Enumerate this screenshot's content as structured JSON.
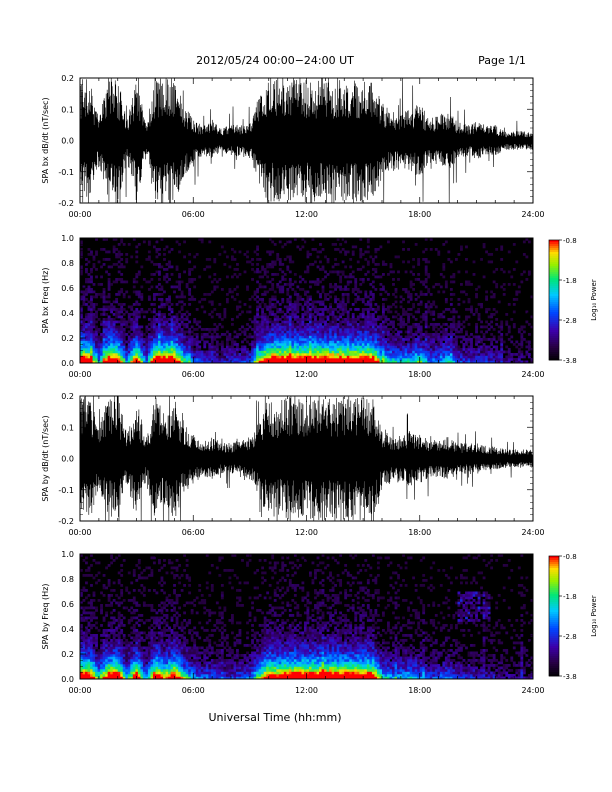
{
  "header": {
    "title": "2012/05/24  00:00−24:00 UT",
    "page": "Page 1/1"
  },
  "footer": {
    "xlabel": "Universal Time (hh:mm)"
  },
  "colors": {
    "trace": "#000000",
    "background": "#ffffff"
  },
  "chart_data": [
    {
      "type": "line",
      "ylabel": "SPA bx dB/dt (nT/sec)",
      "xlim": [
        0,
        24
      ],
      "ylim": [
        -0.2,
        0.2
      ],
      "x_ticks": [
        "00:00",
        "06:00",
        "12:00",
        "18:00",
        "24:00"
      ],
      "y_ticks": [
        "0.2",
        "0.1",
        "0.0",
        "-0.1",
        "-0.2"
      ],
      "y_tick_values": [
        0.2,
        0.1,
        0.0,
        -0.1,
        -0.2
      ],
      "amplitude_envelope": {
        "hours": [
          0,
          0.5,
          1,
          1.5,
          2,
          2.5,
          3,
          3.5,
          4,
          4.5,
          5,
          5.5,
          6,
          6.5,
          7,
          7.5,
          8,
          8.5,
          9,
          9.5,
          10,
          10.5,
          11,
          11.5,
          12,
          12.5,
          13,
          13.5,
          14,
          14.5,
          15,
          15.5,
          16,
          16.5,
          17,
          17.5,
          18,
          18.5,
          19,
          19.5,
          20,
          20.5,
          21,
          21.5,
          22,
          22.5,
          23,
          23.5,
          24
        ],
        "values": [
          0.2,
          0.2,
          0.08,
          0.2,
          0.2,
          0.07,
          0.2,
          0.06,
          0.2,
          0.2,
          0.2,
          0.12,
          0.07,
          0.05,
          0.06,
          0.04,
          0.05,
          0.05,
          0.06,
          0.15,
          0.2,
          0.2,
          0.2,
          0.2,
          0.2,
          0.2,
          0.2,
          0.2,
          0.2,
          0.2,
          0.2,
          0.2,
          0.12,
          0.1,
          0.09,
          0.1,
          0.12,
          0.07,
          0.08,
          0.1,
          0.06,
          0.05,
          0.06,
          0.05,
          0.05,
          0.03,
          0.03,
          0.03,
          0.03
        ]
      }
    },
    {
      "type": "heatmap",
      "ylabel": "SPA bx Freq (Hz)",
      "xlim": [
        0,
        24
      ],
      "ylim": [
        0,
        1.0
      ],
      "x_ticks": [
        "00:00",
        "06:00",
        "12:00",
        "18:00",
        "24:00"
      ],
      "y_ticks": [
        "1.0",
        "0.8",
        "0.6",
        "0.4",
        "0.2",
        "0.0"
      ],
      "y_tick_values": [
        1.0,
        0.8,
        0.6,
        0.4,
        0.2,
        0.0
      ],
      "colorbar": {
        "label": "Log₁₀ Power",
        "ticks": [
          "-0.8",
          "-1.8",
          "-2.8",
          "-3.8"
        ],
        "tick_values": [
          -0.8,
          -1.8,
          -2.8,
          -3.8
        ],
        "range": [
          -3.8,
          -0.8
        ]
      }
    },
    {
      "type": "line",
      "ylabel": "SPA by dB/dt (nT/sec)",
      "xlim": [
        0,
        24
      ],
      "ylim": [
        -0.2,
        0.2
      ],
      "x_ticks": [
        "00:00",
        "06:00",
        "12:00",
        "18:00",
        "24:00"
      ],
      "y_ticks": [
        "0.2",
        "0.1",
        "0.0",
        "-0.1",
        "-0.2"
      ],
      "y_tick_values": [
        0.2,
        0.1,
        0.0,
        -0.1,
        -0.2
      ],
      "amplitude_envelope": {
        "hours": [
          0,
          0.5,
          1,
          1.5,
          2,
          2.5,
          3,
          3.5,
          4,
          4.5,
          5,
          5.5,
          6,
          6.5,
          7,
          7.5,
          8,
          8.5,
          9,
          9.5,
          10,
          10.5,
          11,
          11.5,
          12,
          12.5,
          13,
          13.5,
          14,
          14.5,
          15,
          15.5,
          16,
          16.5,
          17,
          17.5,
          18,
          18.5,
          19,
          19.5,
          20,
          20.5,
          21,
          21.5,
          22,
          22.5,
          23,
          23.5,
          24
        ],
        "values": [
          0.2,
          0.2,
          0.1,
          0.2,
          0.2,
          0.08,
          0.2,
          0.07,
          0.2,
          0.15,
          0.2,
          0.12,
          0.08,
          0.06,
          0.07,
          0.05,
          0.05,
          0.06,
          0.07,
          0.12,
          0.2,
          0.18,
          0.2,
          0.2,
          0.2,
          0.2,
          0.2,
          0.2,
          0.2,
          0.2,
          0.2,
          0.2,
          0.1,
          0.08,
          0.08,
          0.09,
          0.08,
          0.06,
          0.06,
          0.07,
          0.05,
          0.05,
          0.05,
          0.04,
          0.04,
          0.03,
          0.03,
          0.03,
          0.03
        ]
      }
    },
    {
      "type": "heatmap",
      "ylabel": "SPA by Freq (Hz)",
      "xlim": [
        0,
        24
      ],
      "ylim": [
        0,
        1.0
      ],
      "x_ticks": [
        "00:00",
        "06:00",
        "12:00",
        "18:00",
        "24:00"
      ],
      "y_ticks": [
        "1.0",
        "0.8",
        "0.6",
        "0.4",
        "0.2",
        "0.0"
      ],
      "y_tick_values": [
        1.0,
        0.8,
        0.6,
        0.4,
        0.2,
        0.0
      ],
      "colorbar": {
        "label": "Log₁₀ Power",
        "ticks": [
          "-0.8",
          "-1.8",
          "-2.8",
          "-3.8"
        ],
        "tick_values": [
          -0.8,
          -1.8,
          -2.8,
          -3.8
        ],
        "range": [
          -3.8,
          -0.8
        ]
      }
    }
  ]
}
